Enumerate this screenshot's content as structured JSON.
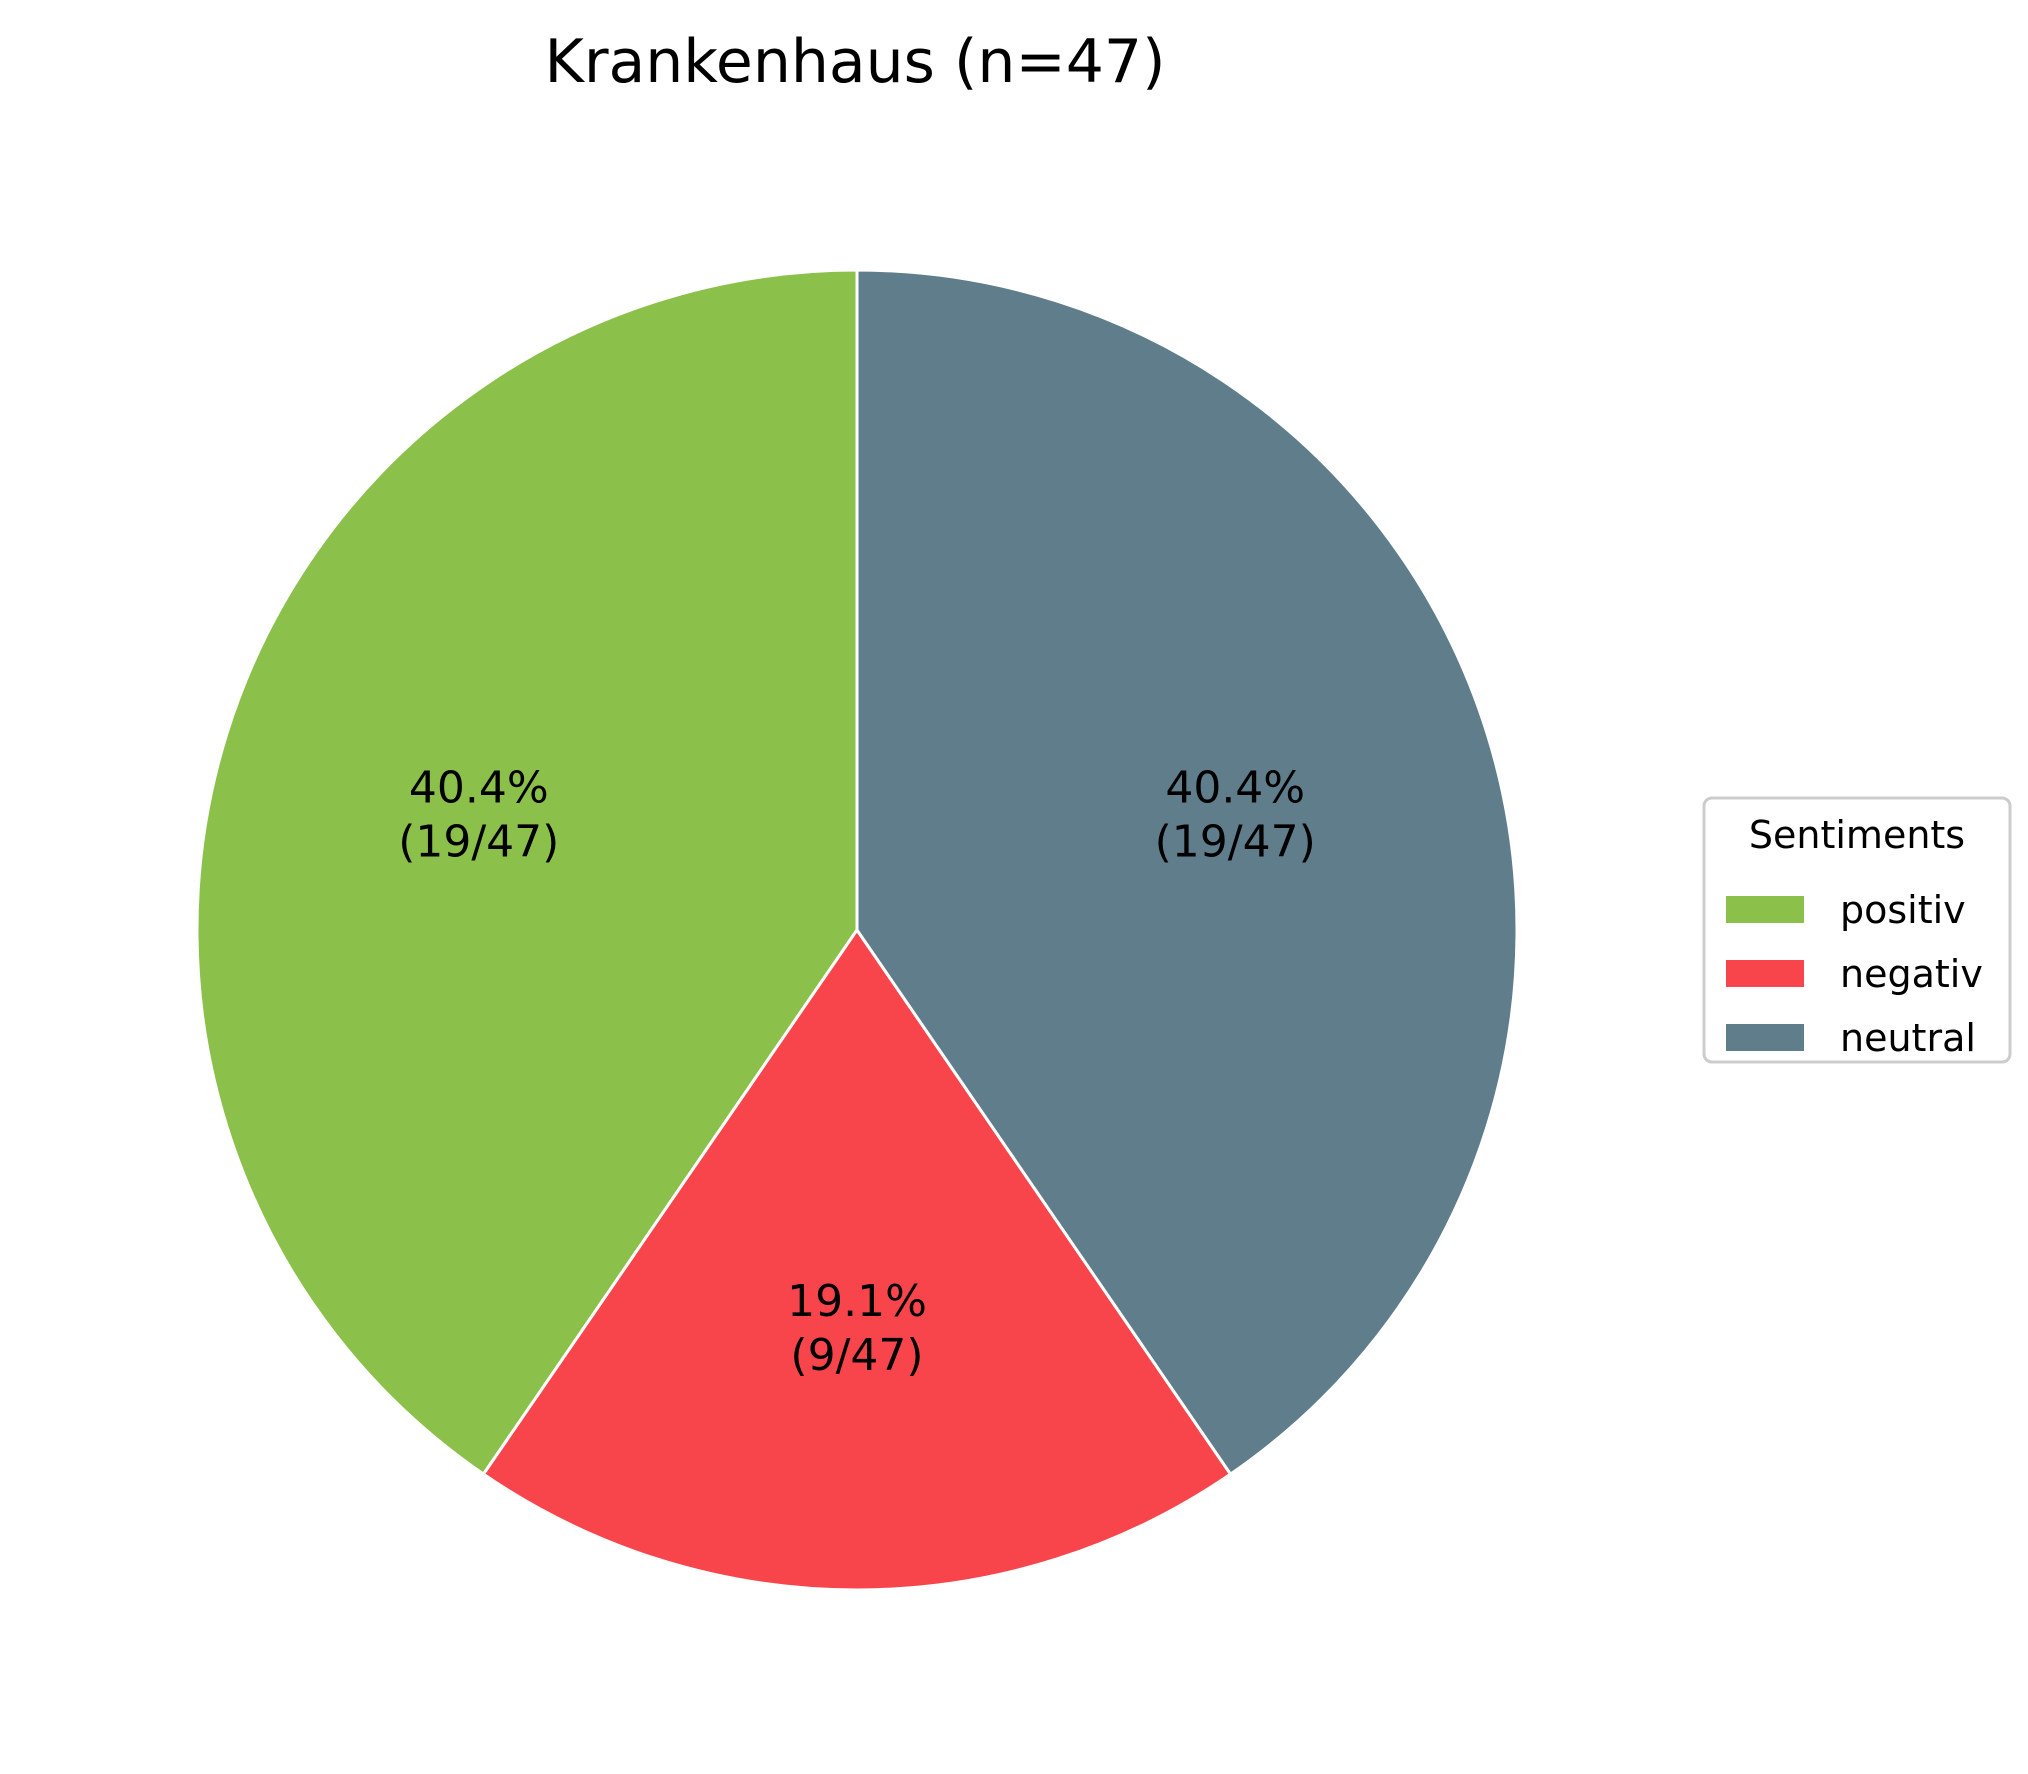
{
  "chart_data": {
    "type": "pie",
    "title": "Krankenhaus (n=47)",
    "total": 47,
    "slices": [
      {
        "name": "positiv",
        "value": 19,
        "percent_label": "40.4%",
        "count_label": "(19/47)",
        "color": "#8bc14a"
      },
      {
        "name": "negativ",
        "value": 9,
        "percent_label": "19.1%",
        "count_label": "(9/47)",
        "color": "#f8454b"
      },
      {
        "name": "neutral",
        "value": 19,
        "percent_label": "40.4%",
        "count_label": "(19/47)",
        "color": "#607d8b"
      }
    ],
    "start_angle": "top",
    "direction": "counterclockwise",
    "edge_color": "#ffffff",
    "legend": {
      "title": "Sentiments",
      "placement": "right",
      "entries": [
        "positiv",
        "negativ",
        "neutral"
      ]
    }
  }
}
